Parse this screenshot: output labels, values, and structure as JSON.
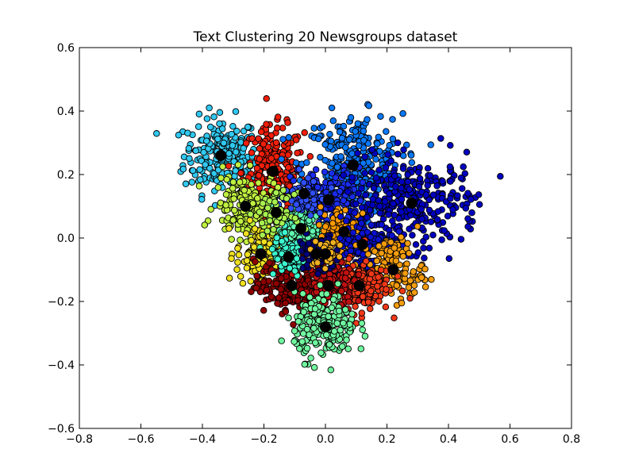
{
  "chart_data": {
    "type": "scatter",
    "title": "Text Clustering 20 Newsgroups dataset",
    "xlabel": "",
    "ylabel": "",
    "xlim": [
      -0.8,
      0.8
    ],
    "ylim": [
      -0.6,
      0.6
    ],
    "x_ticks": [
      -0.8,
      -0.6,
      -0.4,
      -0.2,
      0.0,
      0.2,
      0.4,
      0.6,
      0.8
    ],
    "y_ticks": [
      -0.6,
      -0.4,
      -0.2,
      0.0,
      0.2,
      0.4,
      0.6
    ],
    "x_tick_labels": [
      "−0.8",
      "−0.6",
      "−0.4",
      "−0.2",
      "0.0",
      "0.2",
      "0.4",
      "0.6",
      "0.8"
    ],
    "y_tick_labels": [
      "−0.6",
      "−0.4",
      "−0.2",
      "0.0",
      "0.2",
      "0.4",
      "0.6"
    ],
    "grid": false,
    "legend": "none",
    "point_edge_color": "#000000",
    "centroid_color": "#000000",
    "clusters": [
      {
        "color": "#30c8f0",
        "centroid": [
          -0.34,
          0.26
        ],
        "spread": [
          0.06,
          0.06
        ],
        "count": 230
      },
      {
        "color": "#f01e0a",
        "centroid": [
          -0.17,
          0.21
        ],
        "spread": [
          0.05,
          0.07
        ],
        "count": 230
      },
      {
        "color": "#0a78f8",
        "centroid": [
          0.09,
          0.23
        ],
        "spread": [
          0.08,
          0.08
        ],
        "count": 320
      },
      {
        "color": "#1a2cf0",
        "centroid": [
          0.01,
          0.12
        ],
        "spread": [
          0.06,
          0.05
        ],
        "count": 180
      },
      {
        "color": "#0000c0",
        "centroid": [
          0.28,
          0.11
        ],
        "spread": [
          0.11,
          0.07
        ],
        "count": 330
      },
      {
        "color": "#c0f040",
        "centroid": [
          -0.26,
          0.1
        ],
        "spread": [
          0.05,
          0.05
        ],
        "count": 170
      },
      {
        "color": "#f0e020",
        "centroid": [
          -0.21,
          -0.05
        ],
        "spread": [
          0.04,
          0.05
        ],
        "count": 150
      },
      {
        "color": "#60f8b0",
        "centroid": [
          -0.08,
          0.03
        ],
        "spread": [
          0.04,
          0.04
        ],
        "count": 130
      },
      {
        "color": "#ff9a00",
        "centroid": [
          0.06,
          0.02
        ],
        "spread": [
          0.04,
          0.04
        ],
        "count": 110
      },
      {
        "color": "#0a10d0",
        "centroid": [
          0.12,
          -0.02
        ],
        "spread": [
          0.05,
          0.04
        ],
        "count": 130
      },
      {
        "color": "#f39c0e",
        "centroid": [
          0.22,
          -0.1
        ],
        "spread": [
          0.05,
          0.05
        ],
        "count": 130
      },
      {
        "color": "#f03818",
        "centroid": [
          0.11,
          -0.15
        ],
        "spread": [
          0.05,
          0.04
        ],
        "count": 170
      },
      {
        "color": "#900000",
        "centroid": [
          -0.11,
          -0.15
        ],
        "spread": [
          0.06,
          0.04
        ],
        "count": 200
      },
      {
        "color": "#c01010",
        "centroid": [
          0.01,
          -0.15
        ],
        "spread": [
          0.04,
          0.04
        ],
        "count": 120
      },
      {
        "color": "#70f8a0",
        "centroid": [
          0.0,
          -0.28
        ],
        "spread": [
          0.05,
          0.05
        ],
        "count": 220
      },
      {
        "color": "#3cf8d0",
        "centroid": [
          -0.12,
          -0.06
        ],
        "spread": [
          0.03,
          0.03
        ],
        "count": 80
      },
      {
        "color": "#00007c",
        "centroid": [
          -0.03,
          -0.05
        ],
        "spread": [
          0.03,
          0.03
        ],
        "count": 70
      },
      {
        "color": "#3050ff",
        "centroid": [
          -0.07,
          0.14
        ],
        "spread": [
          0.03,
          0.03
        ],
        "count": 60
      },
      {
        "color": "#a8f050",
        "centroid": [
          -0.16,
          0.08
        ],
        "spread": [
          0.03,
          0.03
        ],
        "count": 60
      },
      {
        "color": "#f0b020",
        "centroid": [
          0.0,
          -0.05
        ],
        "spread": [
          0.02,
          0.02
        ],
        "count": 40
      }
    ]
  }
}
